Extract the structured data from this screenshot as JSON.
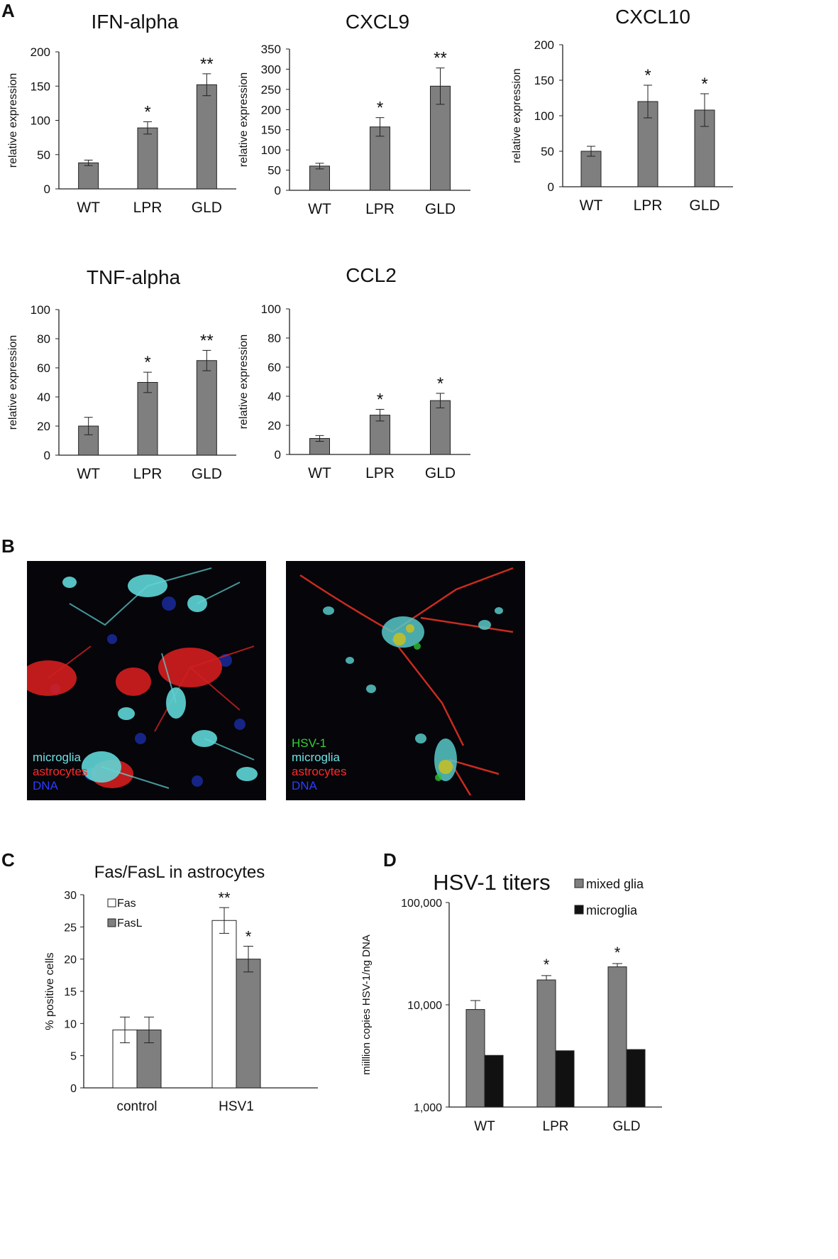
{
  "panels": {
    "a": "A",
    "b": "B",
    "c": "C",
    "d": "D"
  },
  "chart_data": [
    {
      "id": "ifn",
      "type": "bar",
      "title": "IFN-alpha",
      "ylabel": "relative expression",
      "categories": [
        "WT",
        "LPR",
        "GLD"
      ],
      "values": [
        38,
        89,
        152
      ],
      "errors": [
        4,
        9,
        16
      ],
      "significance": [
        "",
        "*",
        "**"
      ],
      "ylim": [
        0,
        200
      ],
      "yticks": [
        0,
        50,
        100,
        150,
        200
      ]
    },
    {
      "id": "cxcl9",
      "type": "bar",
      "title": "CXCL9",
      "ylabel": "relative expression",
      "categories": [
        "WT",
        "LPR",
        "GLD"
      ],
      "values": [
        60,
        157,
        258
      ],
      "errors": [
        7,
        23,
        45
      ],
      "significance": [
        "",
        "*",
        "**"
      ],
      "ylim": [
        0,
        350
      ],
      "yticks": [
        0,
        50,
        100,
        150,
        200,
        250,
        300,
        350
      ]
    },
    {
      "id": "cxcl10",
      "type": "bar",
      "title": "CXCL10",
      "ylabel": "relative expression",
      "categories": [
        "WT",
        "LPR",
        "GLD"
      ],
      "values": [
        50,
        120,
        108
      ],
      "errors": [
        7,
        23,
        23
      ],
      "significance": [
        "",
        "*",
        "*"
      ],
      "ylim": [
        0,
        200
      ],
      "yticks": [
        0,
        50,
        100,
        150,
        200
      ]
    },
    {
      "id": "tnf",
      "type": "bar",
      "title": "TNF-alpha",
      "ylabel": "relative expression",
      "categories": [
        "WT",
        "LPR",
        "GLD"
      ],
      "values": [
        20,
        50,
        65
      ],
      "errors": [
        6,
        7,
        7
      ],
      "significance": [
        "",
        "*",
        "**"
      ],
      "ylim": [
        0,
        100
      ],
      "yticks": [
        0,
        20,
        40,
        60,
        80,
        100
      ]
    },
    {
      "id": "ccl2",
      "type": "bar",
      "title": "CCL2",
      "ylabel": "relative expression",
      "categories": [
        "WT",
        "LPR",
        "GLD"
      ],
      "values": [
        11,
        27,
        37
      ],
      "errors": [
        2,
        4,
        5
      ],
      "significance": [
        "",
        "*",
        "*"
      ],
      "ylim": [
        0,
        100
      ],
      "yticks": [
        0,
        20,
        40,
        60,
        80,
        100
      ]
    },
    {
      "id": "fas",
      "type": "bar",
      "title": "Fas/FasL in astrocytes",
      "ylabel": "% positive cells",
      "categories": [
        "control",
        "HSV1"
      ],
      "series": [
        {
          "name": "Fas",
          "color": "#ffffff",
          "values": [
            9,
            26
          ],
          "errors": [
            2,
            2
          ],
          "significance": [
            "",
            "**"
          ]
        },
        {
          "name": "FasL",
          "color": "#7f7f7f",
          "values": [
            9,
            20
          ],
          "errors": [
            2,
            2
          ],
          "significance": [
            "",
            "*"
          ]
        }
      ],
      "ylim": [
        0,
        30
      ],
      "yticks": [
        0,
        5,
        10,
        15,
        20,
        25,
        30
      ],
      "legend": "top-left"
    },
    {
      "id": "titers",
      "type": "bar",
      "title": "HSV-1 titers",
      "ylabel": "miillion copies HSV-1/ng  DNA",
      "categories": [
        "WT",
        "LPR",
        "GLD"
      ],
      "yscale": "log",
      "ylim": [
        1000,
        100000
      ],
      "ytick_labels": [
        "1,000",
        "10,000",
        "100,000"
      ],
      "series": [
        {
          "name": "mixed glia",
          "color": "#7f7f7f",
          "values": [
            9000,
            17500,
            23500
          ],
          "errors": [
            2000,
            1800,
            1800
          ],
          "significance": [
            "",
            "*",
            "*"
          ]
        },
        {
          "name": "microglia",
          "color": "#111111",
          "values": [
            3200,
            3550,
            3650
          ],
          "errors": [
            0,
            0,
            0
          ],
          "significance": [
            "",
            "",
            ""
          ]
        }
      ],
      "legend": "top-right"
    }
  ],
  "micrographs": [
    {
      "labels": [
        {
          "text": "microglia",
          "color": "#6fe0e0"
        },
        {
          "text": "astrocytes",
          "color": "#ff2a2a"
        },
        {
          "text": "DNA",
          "color": "#2c3cff"
        }
      ]
    },
    {
      "labels": [
        {
          "text": "HSV-1",
          "color": "#35d035"
        },
        {
          "text": "microglia",
          "color": "#6fe0e0"
        },
        {
          "text": "astrocytes",
          "color": "#ff2a2a"
        },
        {
          "text": "DNA",
          "color": "#2c3cff"
        }
      ]
    }
  ]
}
